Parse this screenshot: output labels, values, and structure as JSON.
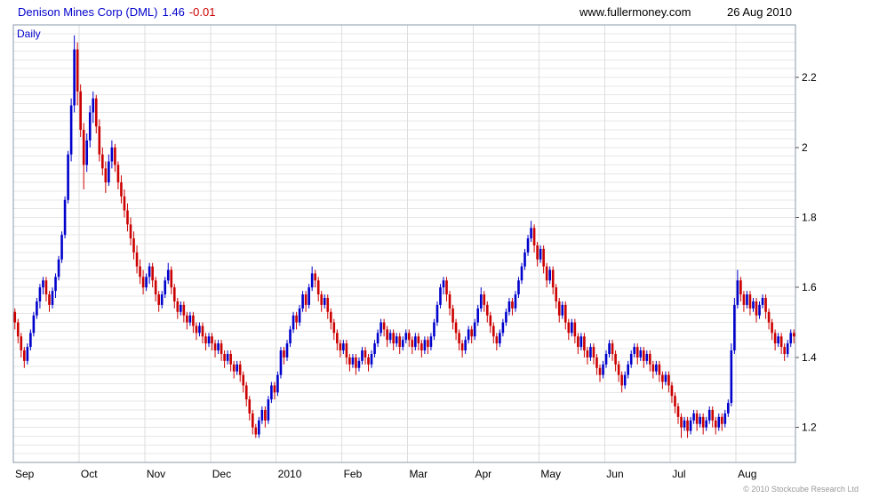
{
  "header": {
    "title": "Denison Mines Corp (DML)",
    "price": "1.46",
    "change": "-0.01",
    "website": "www.fullermoney.com",
    "date": "26 Aug 2010"
  },
  "chart": {
    "frequency_label": "Daily",
    "copyright": "© 2010 Stockcube Research Ltd",
    "colors": {
      "up": "#0000cc",
      "down": "#cc0000",
      "grid": "#e7e7e7",
      "grid_v": "#dedede",
      "border": "#8899aa",
      "title": "#0000cc",
      "change": "#cc0000",
      "axis_text": "#000000",
      "copyright": "#999999"
    }
  },
  "chart_data": {
    "type": "candlestick",
    "title": "Denison Mines Corp (DML) Daily",
    "ylim": [
      1.1,
      2.35
    ],
    "yticks": [
      1.2,
      1.4,
      1.6,
      1.8,
      2.0,
      2.2
    ],
    "ytick_labels": [
      "1.2",
      "1.4",
      "1.6",
      "1.8",
      "2",
      "2.2"
    ],
    "minor_grid_step": 0.025,
    "grid": true,
    "legend": "none",
    "months": [
      {
        "label": "Sep",
        "start": 0
      },
      {
        "label": "Oct",
        "start": 21
      },
      {
        "label": "Nov",
        "start": 42
      },
      {
        "label": "Dec",
        "start": 63
      },
      {
        "label": "2010",
        "start": 84
      },
      {
        "label": "Feb",
        "start": 105
      },
      {
        "label": "Mar",
        "start": 126
      },
      {
        "label": "Apr",
        "start": 147
      },
      {
        "label": "May",
        "start": 168
      },
      {
        "label": "Jun",
        "start": 189
      },
      {
        "label": "Jul",
        "start": 210
      },
      {
        "label": "Aug",
        "start": 231
      }
    ],
    "ohlc": [
      [
        1.53,
        1.54,
        1.48,
        1.5
      ],
      [
        1.5,
        1.51,
        1.44,
        1.46
      ],
      [
        1.46,
        1.47,
        1.4,
        1.42
      ],
      [
        1.42,
        1.43,
        1.37,
        1.39
      ],
      [
        1.39,
        1.44,
        1.38,
        1.43
      ],
      [
        1.43,
        1.48,
        1.42,
        1.47
      ],
      [
        1.47,
        1.53,
        1.46,
        1.52
      ],
      [
        1.52,
        1.57,
        1.51,
        1.56
      ],
      [
        1.56,
        1.61,
        1.54,
        1.6
      ],
      [
        1.6,
        1.63,
        1.58,
        1.62
      ],
      [
        1.62,
        1.63,
        1.56,
        1.58
      ],
      [
        1.58,
        1.59,
        1.53,
        1.55
      ],
      [
        1.55,
        1.6,
        1.54,
        1.59
      ],
      [
        1.59,
        1.64,
        1.57,
        1.63
      ],
      [
        1.63,
        1.69,
        1.62,
        1.68
      ],
      [
        1.68,
        1.76,
        1.67,
        1.75
      ],
      [
        1.75,
        1.86,
        1.74,
        1.85
      ],
      [
        1.85,
        1.99,
        1.84,
        1.98
      ],
      [
        1.98,
        2.14,
        1.96,
        2.12
      ],
      [
        2.12,
        2.32,
        2.1,
        2.28
      ],
      [
        2.28,
        2.3,
        2.12,
        2.16
      ],
      [
        2.16,
        2.18,
        2.03,
        2.05
      ],
      [
        2.05,
        2.07,
        1.88,
        1.95
      ],
      [
        1.95,
        2.04,
        1.93,
        2.02
      ],
      [
        2.02,
        2.12,
        2.0,
        2.1
      ],
      [
        2.1,
        2.16,
        2.07,
        2.14
      ],
      [
        2.14,
        2.15,
        2.04,
        2.06
      ],
      [
        2.06,
        2.08,
        1.96,
        1.98
      ],
      [
        1.98,
        2.0,
        1.92,
        1.94
      ],
      [
        1.94,
        1.96,
        1.87,
        1.9
      ],
      [
        1.9,
        1.98,
        1.89,
        1.96
      ],
      [
        1.96,
        2.02,
        1.94,
        2.0
      ],
      [
        2.0,
        2.01,
        1.93,
        1.95
      ],
      [
        1.95,
        1.96,
        1.88,
        1.9
      ],
      [
        1.9,
        1.92,
        1.84,
        1.86
      ],
      [
        1.86,
        1.88,
        1.8,
        1.82
      ],
      [
        1.82,
        1.84,
        1.76,
        1.78
      ],
      [
        1.78,
        1.8,
        1.72,
        1.74
      ],
      [
        1.74,
        1.76,
        1.68,
        1.7
      ],
      [
        1.7,
        1.72,
        1.64,
        1.66
      ],
      [
        1.66,
        1.68,
        1.61,
        1.63
      ],
      [
        1.63,
        1.65,
        1.58,
        1.6
      ],
      [
        1.6,
        1.64,
        1.59,
        1.63
      ],
      [
        1.63,
        1.67,
        1.61,
        1.66
      ],
      [
        1.66,
        1.67,
        1.6,
        1.62
      ],
      [
        1.62,
        1.63,
        1.56,
        1.58
      ],
      [
        1.58,
        1.59,
        1.53,
        1.55
      ],
      [
        1.55,
        1.59,
        1.54,
        1.58
      ],
      [
        1.58,
        1.63,
        1.57,
        1.62
      ],
      [
        1.62,
        1.67,
        1.61,
        1.65
      ],
      [
        1.65,
        1.66,
        1.58,
        1.6
      ],
      [
        1.6,
        1.61,
        1.54,
        1.56
      ],
      [
        1.56,
        1.57,
        1.51,
        1.53
      ],
      [
        1.53,
        1.56,
        1.52,
        1.55
      ],
      [
        1.55,
        1.56,
        1.5,
        1.52
      ],
      [
        1.52,
        1.53,
        1.48,
        1.5
      ],
      [
        1.5,
        1.53,
        1.49,
        1.52
      ],
      [
        1.52,
        1.53,
        1.47,
        1.49
      ],
      [
        1.49,
        1.5,
        1.45,
        1.47
      ],
      [
        1.47,
        1.5,
        1.46,
        1.49
      ],
      [
        1.49,
        1.5,
        1.44,
        1.46
      ],
      [
        1.46,
        1.47,
        1.42,
        1.44
      ],
      [
        1.44,
        1.47,
        1.43,
        1.46
      ],
      [
        1.46,
        1.47,
        1.42,
        1.44
      ],
      [
        1.44,
        1.45,
        1.4,
        1.42
      ],
      [
        1.42,
        1.45,
        1.41,
        1.44
      ],
      [
        1.44,
        1.45,
        1.39,
        1.41
      ],
      [
        1.41,
        1.42,
        1.37,
        1.39
      ],
      [
        1.39,
        1.42,
        1.38,
        1.41
      ],
      [
        1.41,
        1.42,
        1.36,
        1.38
      ],
      [
        1.38,
        1.39,
        1.34,
        1.36
      ],
      [
        1.36,
        1.39,
        1.35,
        1.38
      ],
      [
        1.38,
        1.39,
        1.33,
        1.35
      ],
      [
        1.35,
        1.36,
        1.3,
        1.32
      ],
      [
        1.32,
        1.33,
        1.26,
        1.28
      ],
      [
        1.28,
        1.29,
        1.22,
        1.24
      ],
      [
        1.24,
        1.25,
        1.18,
        1.2
      ],
      [
        1.2,
        1.21,
        1.17,
        1.18
      ],
      [
        1.18,
        1.23,
        1.17,
        1.22
      ],
      [
        1.22,
        1.26,
        1.21,
        1.25
      ],
      [
        1.25,
        1.26,
        1.2,
        1.22
      ],
      [
        1.22,
        1.29,
        1.21,
        1.28
      ],
      [
        1.28,
        1.33,
        1.27,
        1.32
      ],
      [
        1.32,
        1.33,
        1.28,
        1.3
      ],
      [
        1.3,
        1.36,
        1.29,
        1.35
      ],
      [
        1.35,
        1.43,
        1.34,
        1.42
      ],
      [
        1.42,
        1.43,
        1.38,
        1.4
      ],
      [
        1.4,
        1.45,
        1.39,
        1.44
      ],
      [
        1.44,
        1.49,
        1.43,
        1.48
      ],
      [
        1.48,
        1.53,
        1.47,
        1.52
      ],
      [
        1.52,
        1.53,
        1.48,
        1.5
      ],
      [
        1.5,
        1.55,
        1.49,
        1.54
      ],
      [
        1.54,
        1.59,
        1.53,
        1.58
      ],
      [
        1.58,
        1.59,
        1.53,
        1.55
      ],
      [
        1.55,
        1.61,
        1.54,
        1.6
      ],
      [
        1.6,
        1.66,
        1.59,
        1.64
      ],
      [
        1.64,
        1.65,
        1.6,
        1.62
      ],
      [
        1.62,
        1.63,
        1.56,
        1.58
      ],
      [
        1.58,
        1.59,
        1.53,
        1.55
      ],
      [
        1.55,
        1.58,
        1.54,
        1.57
      ],
      [
        1.57,
        1.58,
        1.51,
        1.53
      ],
      [
        1.53,
        1.54,
        1.48,
        1.5
      ],
      [
        1.5,
        1.51,
        1.45,
        1.47
      ],
      [
        1.47,
        1.48,
        1.42,
        1.44
      ],
      [
        1.44,
        1.45,
        1.4,
        1.42
      ],
      [
        1.42,
        1.45,
        1.41,
        1.44
      ],
      [
        1.44,
        1.45,
        1.38,
        1.4
      ],
      [
        1.4,
        1.41,
        1.36,
        1.38
      ],
      [
        1.38,
        1.41,
        1.37,
        1.4
      ],
      [
        1.4,
        1.41,
        1.35,
        1.37
      ],
      [
        1.37,
        1.4,
        1.36,
        1.39
      ],
      [
        1.39,
        1.43,
        1.38,
        1.42
      ],
      [
        1.42,
        1.43,
        1.38,
        1.4
      ],
      [
        1.4,
        1.41,
        1.36,
        1.38
      ],
      [
        1.38,
        1.42,
        1.37,
        1.41
      ],
      [
        1.41,
        1.45,
        1.4,
        1.44
      ],
      [
        1.44,
        1.48,
        1.43,
        1.47
      ],
      [
        1.47,
        1.51,
        1.46,
        1.5
      ],
      [
        1.5,
        1.51,
        1.46,
        1.48
      ],
      [
        1.48,
        1.49,
        1.43,
        1.45
      ],
      [
        1.45,
        1.48,
        1.44,
        1.47
      ],
      [
        1.47,
        1.48,
        1.42,
        1.44
      ],
      [
        1.44,
        1.47,
        1.43,
        1.46
      ],
      [
        1.46,
        1.47,
        1.41,
        1.43
      ],
      [
        1.43,
        1.46,
        1.42,
        1.45
      ],
      [
        1.45,
        1.48,
        1.44,
        1.47
      ],
      [
        1.47,
        1.48,
        1.43,
        1.45
      ],
      [
        1.45,
        1.46,
        1.41,
        1.43
      ],
      [
        1.43,
        1.47,
        1.42,
        1.46
      ],
      [
        1.46,
        1.47,
        1.42,
        1.44
      ],
      [
        1.44,
        1.45,
        1.4,
        1.42
      ],
      [
        1.42,
        1.46,
        1.41,
        1.45
      ],
      [
        1.45,
        1.46,
        1.41,
        1.43
      ],
      [
        1.43,
        1.47,
        1.42,
        1.46
      ],
      [
        1.46,
        1.51,
        1.45,
        1.5
      ],
      [
        1.5,
        1.56,
        1.49,
        1.55
      ],
      [
        1.55,
        1.61,
        1.54,
        1.6
      ],
      [
        1.6,
        1.63,
        1.58,
        1.62
      ],
      [
        1.62,
        1.63,
        1.56,
        1.58
      ],
      [
        1.58,
        1.59,
        1.52,
        1.54
      ],
      [
        1.54,
        1.55,
        1.48,
        1.5
      ],
      [
        1.5,
        1.51,
        1.45,
        1.47
      ],
      [
        1.47,
        1.48,
        1.42,
        1.44
      ],
      [
        1.44,
        1.45,
        1.4,
        1.42
      ],
      [
        1.42,
        1.46,
        1.41,
        1.45
      ],
      [
        1.45,
        1.49,
        1.44,
        1.48
      ],
      [
        1.48,
        1.49,
        1.44,
        1.46
      ],
      [
        1.46,
        1.51,
        1.45,
        1.5
      ],
      [
        1.5,
        1.55,
        1.49,
        1.54
      ],
      [
        1.54,
        1.6,
        1.53,
        1.58
      ],
      [
        1.58,
        1.59,
        1.53,
        1.55
      ],
      [
        1.55,
        1.56,
        1.5,
        1.52
      ],
      [
        1.52,
        1.53,
        1.47,
        1.49
      ],
      [
        1.49,
        1.5,
        1.44,
        1.46
      ],
      [
        1.46,
        1.47,
        1.42,
        1.44
      ],
      [
        1.44,
        1.48,
        1.43,
        1.47
      ],
      [
        1.47,
        1.51,
        1.46,
        1.5
      ],
      [
        1.5,
        1.54,
        1.49,
        1.53
      ],
      [
        1.53,
        1.57,
        1.52,
        1.56
      ],
      [
        1.56,
        1.57,
        1.52,
        1.54
      ],
      [
        1.54,
        1.59,
        1.53,
        1.58
      ],
      [
        1.58,
        1.63,
        1.57,
        1.62
      ],
      [
        1.62,
        1.67,
        1.61,
        1.66
      ],
      [
        1.66,
        1.71,
        1.65,
        1.7
      ],
      [
        1.7,
        1.75,
        1.69,
        1.74
      ],
      [
        1.74,
        1.79,
        1.73,
        1.77
      ],
      [
        1.77,
        1.78,
        1.7,
        1.72
      ],
      [
        1.72,
        1.73,
        1.66,
        1.68
      ],
      [
        1.68,
        1.72,
        1.67,
        1.71
      ],
      [
        1.71,
        1.72,
        1.64,
        1.66
      ],
      [
        1.66,
        1.67,
        1.6,
        1.62
      ],
      [
        1.62,
        1.66,
        1.61,
        1.65
      ],
      [
        1.65,
        1.66,
        1.58,
        1.6
      ],
      [
        1.6,
        1.61,
        1.54,
        1.56
      ],
      [
        1.56,
        1.57,
        1.5,
        1.52
      ],
      [
        1.52,
        1.56,
        1.51,
        1.55
      ],
      [
        1.55,
        1.56,
        1.48,
        1.5
      ],
      [
        1.5,
        1.51,
        1.45,
        1.47
      ],
      [
        1.47,
        1.51,
        1.46,
        1.5
      ],
      [
        1.5,
        1.51,
        1.44,
        1.46
      ],
      [
        1.46,
        1.47,
        1.41,
        1.43
      ],
      [
        1.43,
        1.47,
        1.42,
        1.46
      ],
      [
        1.46,
        1.47,
        1.4,
        1.42
      ],
      [
        1.42,
        1.43,
        1.38,
        1.4
      ],
      [
        1.4,
        1.44,
        1.39,
        1.43
      ],
      [
        1.43,
        1.44,
        1.38,
        1.4
      ],
      [
        1.4,
        1.41,
        1.35,
        1.37
      ],
      [
        1.37,
        1.38,
        1.33,
        1.35
      ],
      [
        1.35,
        1.39,
        1.34,
        1.38
      ],
      [
        1.38,
        1.42,
        1.37,
        1.41
      ],
      [
        1.41,
        1.45,
        1.4,
        1.44
      ],
      [
        1.44,
        1.45,
        1.39,
        1.41
      ],
      [
        1.41,
        1.42,
        1.36,
        1.38
      ],
      [
        1.38,
        1.39,
        1.33,
        1.35
      ],
      [
        1.35,
        1.36,
        1.3,
        1.32
      ],
      [
        1.32,
        1.36,
        1.31,
        1.35
      ],
      [
        1.35,
        1.39,
        1.34,
        1.38
      ],
      [
        1.38,
        1.42,
        1.37,
        1.41
      ],
      [
        1.41,
        1.44,
        1.4,
        1.43
      ],
      [
        1.43,
        1.44,
        1.38,
        1.4
      ],
      [
        1.4,
        1.43,
        1.39,
        1.42
      ],
      [
        1.42,
        1.43,
        1.37,
        1.39
      ],
      [
        1.39,
        1.42,
        1.38,
        1.41
      ],
      [
        1.41,
        1.42,
        1.36,
        1.38
      ],
      [
        1.38,
        1.39,
        1.34,
        1.36
      ],
      [
        1.36,
        1.39,
        1.35,
        1.38
      ],
      [
        1.38,
        1.39,
        1.33,
        1.35
      ],
      [
        1.35,
        1.36,
        1.31,
        1.33
      ],
      [
        1.33,
        1.36,
        1.32,
        1.35
      ],
      [
        1.35,
        1.36,
        1.3,
        1.32
      ],
      [
        1.32,
        1.33,
        1.27,
        1.29
      ],
      [
        1.29,
        1.3,
        1.24,
        1.26
      ],
      [
        1.26,
        1.27,
        1.21,
        1.23
      ],
      [
        1.23,
        1.24,
        1.17,
        1.2
      ],
      [
        1.2,
        1.23,
        1.19,
        1.22
      ],
      [
        1.22,
        1.23,
        1.17,
        1.19
      ],
      [
        1.19,
        1.23,
        1.18,
        1.22
      ],
      [
        1.22,
        1.25,
        1.21,
        1.24
      ],
      [
        1.24,
        1.25,
        1.19,
        1.21
      ],
      [
        1.21,
        1.24,
        1.2,
        1.23
      ],
      [
        1.23,
        1.24,
        1.18,
        1.2
      ],
      [
        1.2,
        1.23,
        1.19,
        1.22
      ],
      [
        1.22,
        1.26,
        1.21,
        1.25
      ],
      [
        1.25,
        1.26,
        1.2,
        1.22
      ],
      [
        1.22,
        1.23,
        1.18,
        1.2
      ],
      [
        1.2,
        1.24,
        1.19,
        1.23
      ],
      [
        1.23,
        1.24,
        1.19,
        1.21
      ],
      [
        1.21,
        1.25,
        1.2,
        1.24
      ],
      [
        1.24,
        1.28,
        1.23,
        1.27
      ],
      [
        1.27,
        1.44,
        1.26,
        1.42
      ],
      [
        1.42,
        1.57,
        1.41,
        1.55
      ],
      [
        1.55,
        1.65,
        1.54,
        1.62
      ],
      [
        1.62,
        1.63,
        1.56,
        1.58
      ],
      [
        1.58,
        1.59,
        1.53,
        1.55
      ],
      [
        1.55,
        1.59,
        1.54,
        1.58
      ],
      [
        1.58,
        1.59,
        1.52,
        1.54
      ],
      [
        1.54,
        1.57,
        1.53,
        1.56
      ],
      [
        1.56,
        1.57,
        1.5,
        1.52
      ],
      [
        1.52,
        1.56,
        1.51,
        1.55
      ],
      [
        1.55,
        1.58,
        1.54,
        1.57
      ],
      [
        1.57,
        1.58,
        1.51,
        1.53
      ],
      [
        1.53,
        1.54,
        1.48,
        1.5
      ],
      [
        1.5,
        1.51,
        1.45,
        1.47
      ],
      [
        1.47,
        1.48,
        1.42,
        1.44
      ],
      [
        1.44,
        1.47,
        1.43,
        1.46
      ],
      [
        1.46,
        1.47,
        1.41,
        1.43
      ],
      [
        1.43,
        1.44,
        1.39,
        1.41
      ],
      [
        1.41,
        1.45,
        1.4,
        1.44
      ],
      [
        1.44,
        1.48,
        1.43,
        1.47
      ],
      [
        1.47,
        1.48,
        1.44,
        1.46
      ]
    ]
  }
}
